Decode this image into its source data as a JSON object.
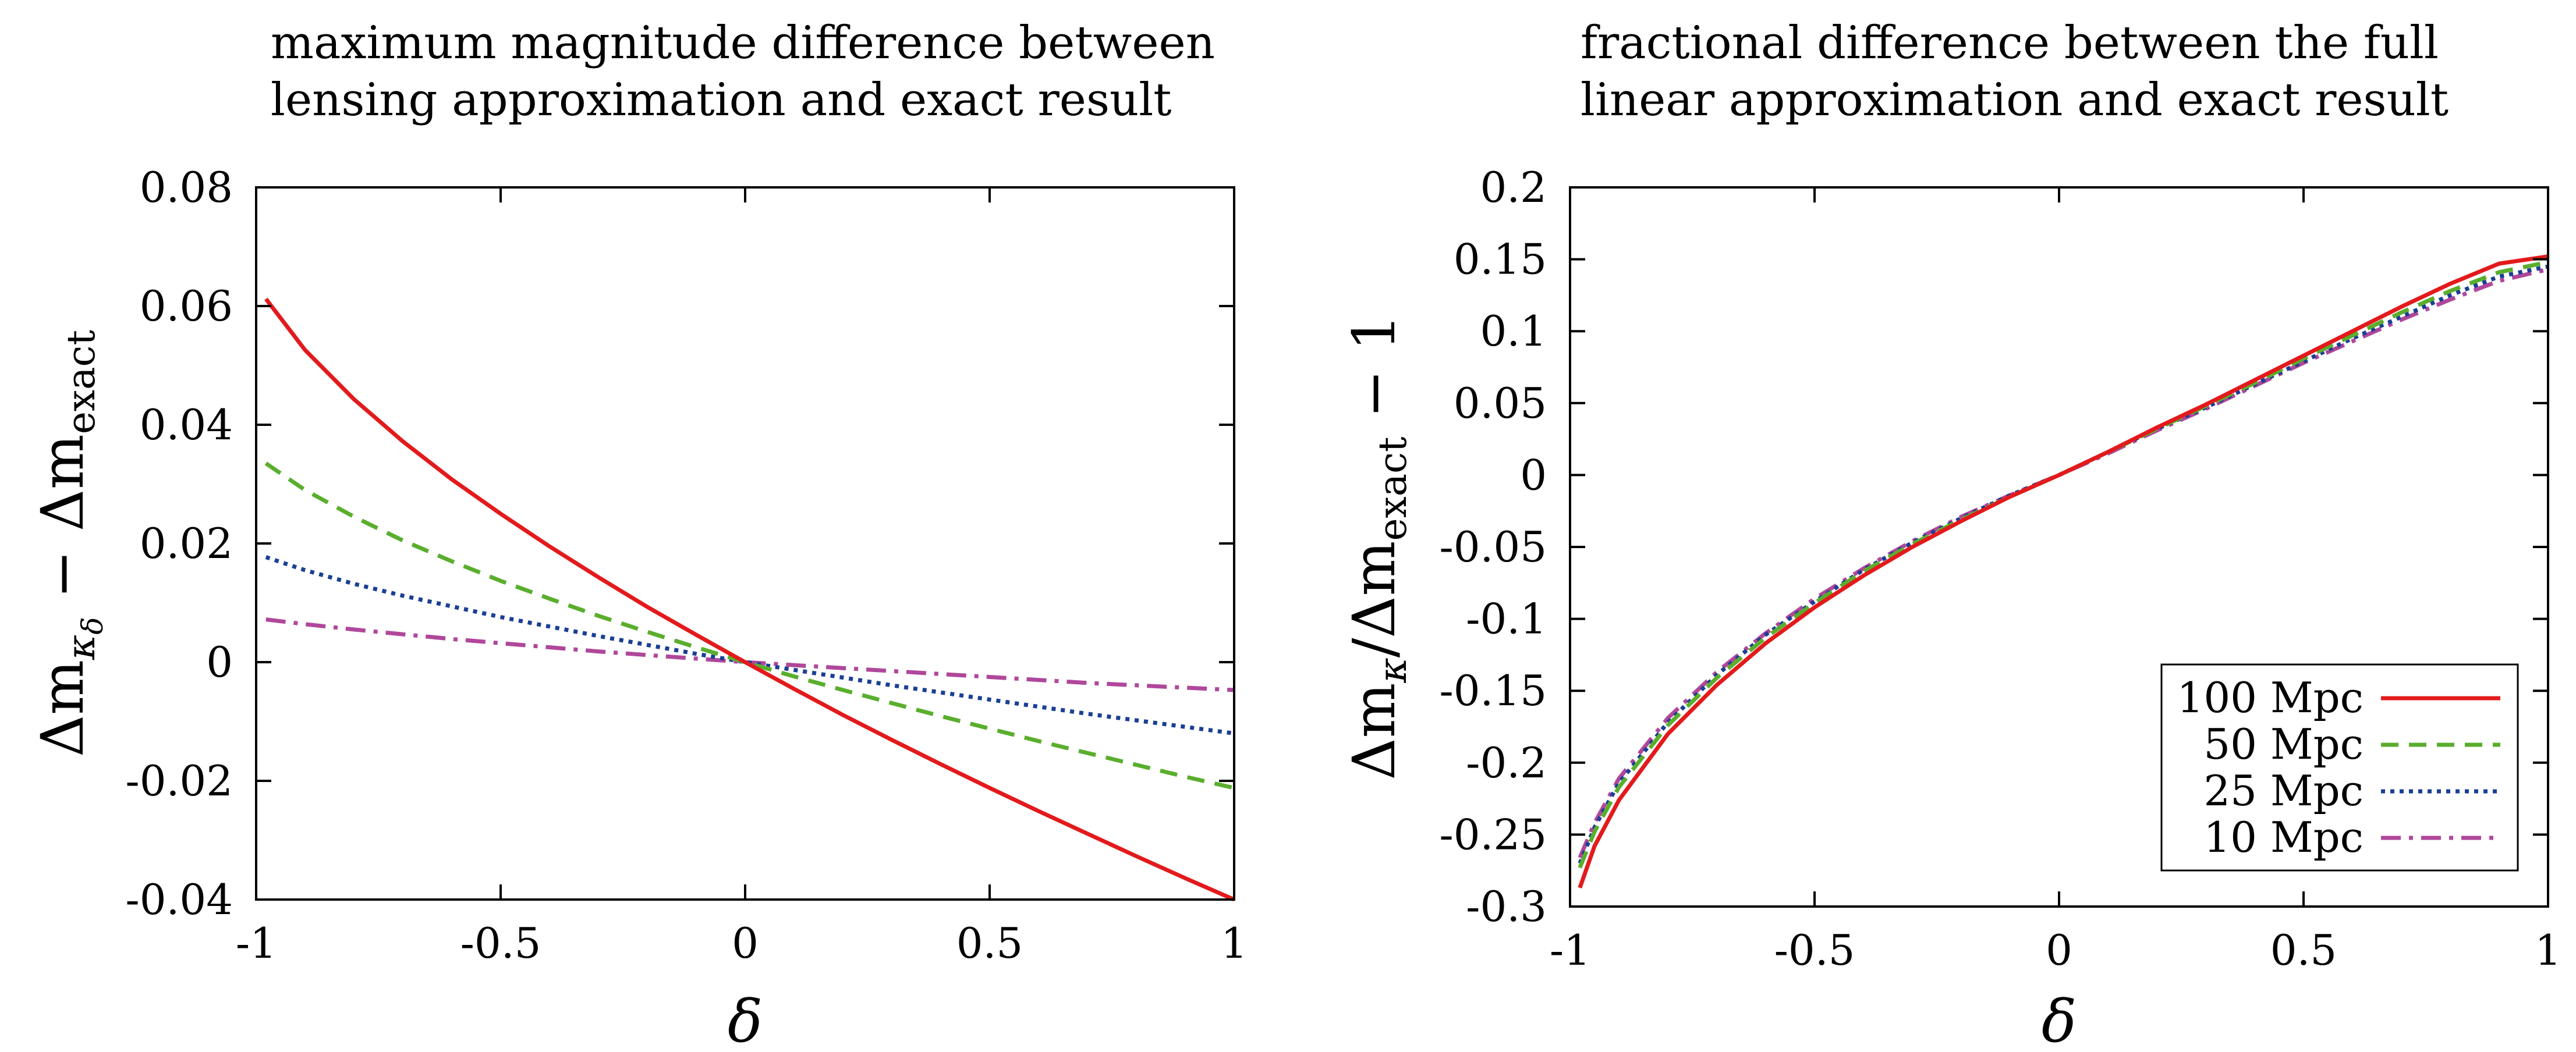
{
  "chart_data": [
    {
      "type": "line",
      "title_lines": [
        "maximum magnitude difference between",
        "lensing approximation and exact result"
      ],
      "xlabel": "δ",
      "ylabel_parts": {
        "pre": "Δm",
        "sub": "κ",
        "subsub": "δ",
        "mid": " − Δm",
        "sub2": "exact"
      },
      "xlim": [
        -1,
        1
      ],
      "ylim": [
        -0.04,
        0.08
      ],
      "xticks": [
        -1,
        -0.5,
        0,
        0.5,
        1
      ],
      "xtick_labels": [
        "-1",
        "-0.5",
        "0",
        "0.5",
        "1"
      ],
      "yticks": [
        -0.04,
        -0.02,
        0,
        0.02,
        0.04,
        0.06,
        0.08
      ],
      "ytick_labels": [
        "-0.04",
        "-0.02",
        "0",
        "0.02",
        "0.04",
        "0.06",
        "0.08"
      ],
      "grid": false,
      "series": [
        {
          "name": "100 Mpc",
          "color": "#e31a1c",
          "dash": "solid",
          "x": [
            -0.98,
            -0.9,
            -0.8,
            -0.7,
            -0.6,
            -0.5,
            -0.4,
            -0.3,
            -0.2,
            -0.1,
            0,
            0.1,
            0.2,
            0.3,
            0.4,
            0.5,
            0.6,
            0.7,
            0.8,
            0.9,
            1.0
          ],
          "y": [
            0.0612,
            0.0526,
            0.0443,
            0.0372,
            0.0308,
            0.025,
            0.0195,
            0.0143,
            0.0093,
            0.0046,
            0,
            -0.0045,
            -0.0089,
            -0.0131,
            -0.0172,
            -0.0212,
            -0.0251,
            -0.0289,
            -0.0327,
            -0.0364,
            -0.04
          ]
        },
        {
          "name": "50 Mpc",
          "color": "#5aae2d",
          "dash": "dashed",
          "x": [
            -0.98,
            -0.9,
            -0.8,
            -0.7,
            -0.6,
            -0.5,
            -0.4,
            -0.3,
            -0.2,
            -0.1,
            0,
            0.1,
            0.2,
            0.3,
            0.4,
            0.5,
            0.6,
            0.7,
            0.8,
            0.9,
            1.0
          ],
          "y": [
            0.0335,
            0.029,
            0.0245,
            0.0205,
            0.017,
            0.0137,
            0.0107,
            0.0078,
            0.0051,
            0.0025,
            0,
            -0.0024,
            -0.0047,
            -0.0069,
            -0.0091,
            -0.0112,
            -0.0133,
            -0.0153,
            -0.0173,
            -0.0193,
            -0.0212
          ]
        },
        {
          "name": "25 Mpc",
          "color": "#1a3f95",
          "dash": "dotted",
          "x": [
            -0.98,
            -0.9,
            -0.8,
            -0.7,
            -0.6,
            -0.5,
            -0.4,
            -0.3,
            -0.2,
            -0.1,
            0,
            0.1,
            0.2,
            0.3,
            0.4,
            0.5,
            0.6,
            0.7,
            0.8,
            0.9,
            1.0
          ],
          "y": [
            0.0177,
            0.0155,
            0.0132,
            0.0112,
            0.0094,
            0.0076,
            0.006,
            0.0044,
            0.0029,
            0.0014,
            0,
            -0.0013,
            -0.0026,
            -0.0039,
            -0.0051,
            -0.0063,
            -0.0075,
            -0.0087,
            -0.0098,
            -0.0109,
            -0.012
          ]
        },
        {
          "name": "10 Mpc",
          "color": "#b0479b",
          "dash": "dashdot",
          "x": [
            -0.98,
            -0.9,
            -0.8,
            -0.7,
            -0.6,
            -0.5,
            -0.4,
            -0.3,
            -0.2,
            -0.1,
            0,
            0.1,
            0.2,
            0.3,
            0.4,
            0.5,
            0.6,
            0.7,
            0.8,
            0.9,
            1.0
          ],
          "y": [
            0.0072,
            0.0064,
            0.0055,
            0.0047,
            0.0039,
            0.0032,
            0.0025,
            0.0018,
            0.0012,
            0.0006,
            0,
            -0.0005,
            -0.001,
            -0.0015,
            -0.002,
            -0.0025,
            -0.003,
            -0.0035,
            -0.0039,
            -0.0043,
            -0.0047
          ]
        }
      ]
    },
    {
      "type": "line",
      "title_lines": [
        "fractional difference between the full",
        "linear approximation and exact result"
      ],
      "xlabel": "δ",
      "ylabel_parts": {
        "pre": "Δm",
        "sub": "κ",
        "mid": "/Δm",
        "sub2": "exact",
        "post": " − 1"
      },
      "xlim": [
        -1,
        1
      ],
      "ylim": [
        -0.3,
        0.2
      ],
      "xticks": [
        -1,
        -0.5,
        0,
        0.5,
        1
      ],
      "xtick_labels": [
        "-1",
        "-0.5",
        "0",
        "0.5",
        "1"
      ],
      "yticks": [
        -0.3,
        -0.25,
        -0.2,
        -0.15,
        -0.1,
        -0.05,
        0,
        0.05,
        0.1,
        0.15,
        0.2
      ],
      "ytick_labels": [
        "-0.3",
        "-0.25",
        "-0.2",
        "-0.15",
        "-0.1",
        "-0.05",
        "0",
        "0.05",
        "0.1",
        "0.15",
        "0.2"
      ],
      "grid": false,
      "legend_position": "bottom-right",
      "legend": [
        "100 Mpc",
        "50 Mpc",
        "25 Mpc",
        "10 Mpc"
      ],
      "series": [
        {
          "name": "100 Mpc",
          "color": "#e31a1c",
          "dash": "solid",
          "x": [
            -0.98,
            -0.95,
            -0.9,
            -0.8,
            -0.7,
            -0.6,
            -0.5,
            -0.4,
            -0.3,
            -0.2,
            -0.1,
            0,
            0.1,
            0.2,
            0.3,
            0.4,
            0.5,
            0.6,
            0.7,
            0.8,
            0.9,
            1.0
          ],
          "y": [
            -0.287,
            -0.258,
            -0.226,
            -0.18,
            -0.146,
            -0.117,
            -0.092,
            -0.07,
            -0.05,
            -0.032,
            -0.015,
            0.0,
            0.016,
            0.033,
            0.049,
            0.066,
            0.083,
            0.1,
            0.117,
            0.133,
            0.147,
            0.152
          ]
        },
        {
          "name": "50 Mpc",
          "color": "#5aae2d",
          "dash": "dashed",
          "x": [
            -0.98,
            -0.95,
            -0.9,
            -0.8,
            -0.7,
            -0.6,
            -0.5,
            -0.4,
            -0.3,
            -0.2,
            -0.1,
            0,
            0.1,
            0.2,
            0.3,
            0.4,
            0.5,
            0.6,
            0.7,
            0.8,
            0.9,
            1.0
          ],
          "y": [
            -0.273,
            -0.248,
            -0.217,
            -0.174,
            -0.141,
            -0.113,
            -0.089,
            -0.067,
            -0.048,
            -0.031,
            -0.015,
            0.0,
            0.016,
            0.032,
            0.048,
            0.064,
            0.081,
            0.097,
            0.113,
            0.128,
            0.141,
            0.148
          ]
        },
        {
          "name": "25 Mpc",
          "color": "#1a3f95",
          "dash": "dotted",
          "x": [
            -0.98,
            -0.95,
            -0.9,
            -0.8,
            -0.7,
            -0.6,
            -0.5,
            -0.4,
            -0.3,
            -0.2,
            -0.1,
            0,
            0.1,
            0.2,
            0.3,
            0.4,
            0.5,
            0.6,
            0.7,
            0.8,
            0.9,
            1.0
          ],
          "y": [
            -0.27,
            -0.245,
            -0.214,
            -0.172,
            -0.139,
            -0.111,
            -0.088,
            -0.066,
            -0.047,
            -0.03,
            -0.014,
            0.0,
            0.016,
            0.032,
            0.047,
            0.063,
            0.079,
            0.095,
            0.11,
            0.125,
            0.138,
            0.145
          ]
        },
        {
          "name": "10 Mpc",
          "color": "#b0479b",
          "dash": "dashdot",
          "x": [
            -0.98,
            -0.95,
            -0.9,
            -0.8,
            -0.7,
            -0.6,
            -0.5,
            -0.4,
            -0.3,
            -0.2,
            -0.1,
            0,
            0.1,
            0.2,
            0.3,
            0.4,
            0.5,
            0.6,
            0.7,
            0.8,
            0.9,
            1.0
          ],
          "y": [
            -0.266,
            -0.242,
            -0.211,
            -0.169,
            -0.137,
            -0.11,
            -0.086,
            -0.065,
            -0.046,
            -0.029,
            -0.014,
            0.0,
            0.015,
            0.031,
            0.046,
            0.062,
            0.078,
            0.093,
            0.108,
            0.122,
            0.135,
            0.143
          ]
        }
      ]
    }
  ]
}
